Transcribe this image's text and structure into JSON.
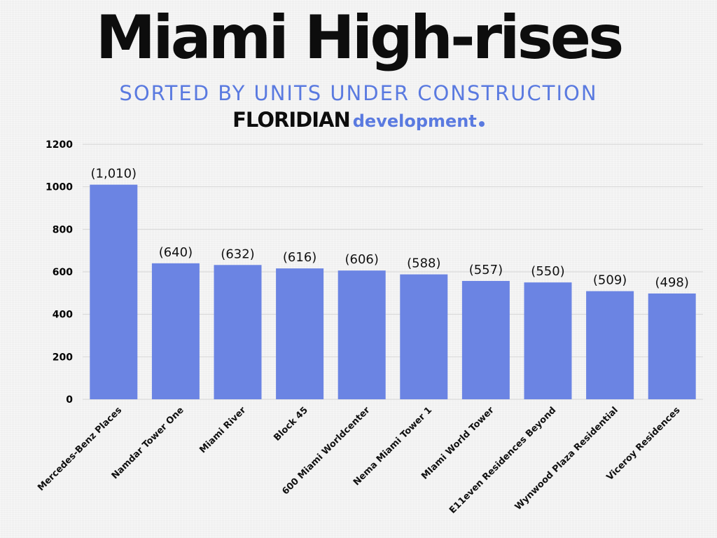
{
  "header": {
    "title": "Miami High-rises",
    "subtitle": "SORTED BY UNITS UNDER CONSTRUCTION",
    "brand_main": "FLORIDIAN",
    "brand_sub": "development"
  },
  "colors": {
    "bar": "#6b84e3",
    "accent": "#5a7ae0",
    "grid": "#d6d6d6",
    "title": "#0d0d0d"
  },
  "chart_data": {
    "type": "bar",
    "title": "Miami High-rises",
    "subtitle": "SORTED BY UNITS UNDER CONSTRUCTION",
    "xlabel": "",
    "ylabel": "",
    "ylim": [
      0,
      1200
    ],
    "yticks": [
      0,
      200,
      400,
      600,
      800,
      1000,
      1200
    ],
    "grid": true,
    "categories": [
      "Mercedes-Benz Places",
      "Namdar Tower One",
      "Miami River",
      "Block 45",
      "600 Miami Worldcenter",
      "Nema Miami Tower 1",
      "MIami World Tower",
      "E11even Residences Beyond",
      "Wynwood Plaza Residential",
      "Viceroy Residences"
    ],
    "values": [
      1010,
      640,
      632,
      616,
      606,
      588,
      557,
      550,
      509,
      498
    ],
    "data_labels": [
      "(1,010)",
      "(640)",
      "(632)",
      "(616)",
      "(606)",
      "(588)",
      "(557)",
      "(550)",
      "(509)",
      "(498)"
    ]
  }
}
